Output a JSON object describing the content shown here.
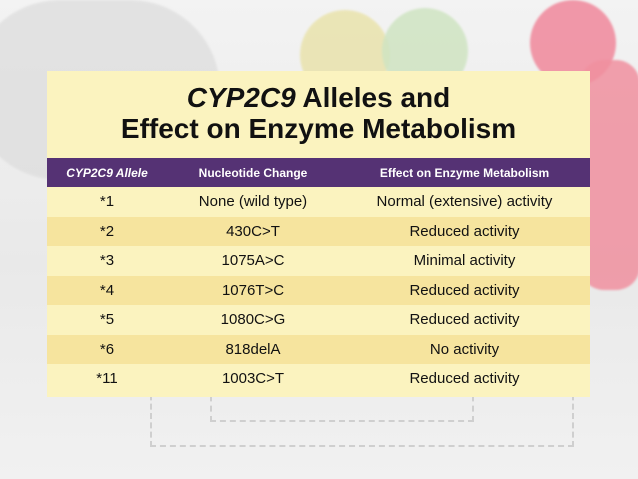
{
  "title": {
    "gene": "CYP2C9",
    "line1_rest": " Alleles and",
    "line2": "Effect on Enzyme Metabolism"
  },
  "table": {
    "headers": [
      "CYP2C9 Allele",
      "Nucleotide Change",
      "Effect on Enzyme Metabolism"
    ],
    "rows": [
      [
        "*1",
        "None (wild type)",
        "Normal (extensive) activity"
      ],
      [
        "*2",
        "430C>T",
        "Reduced activity"
      ],
      [
        "*3",
        "1075A>C",
        "Minimal activity"
      ],
      [
        "*4",
        "1076T>C",
        "Reduced activity"
      ],
      [
        "*5",
        "1080C>G",
        "Reduced activity"
      ],
      [
        "*6",
        "818delA",
        "No activity"
      ],
      [
        "*11",
        "1003C>T",
        "Reduced activity"
      ]
    ]
  },
  "colors": {
    "header_bg": "#553274",
    "row_light": "#fbf3bf",
    "row_dark": "#f6e49e"
  }
}
